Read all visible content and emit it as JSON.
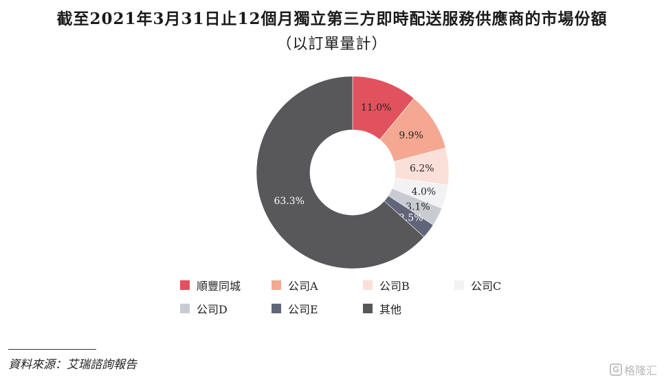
{
  "title_line1": "截至2021年3月31日止12個月獨立第三方即時配送服務供應商的市場份額",
  "title_line2": "（以訂單量計）",
  "source": "資料來源：艾瑞諮詢報告",
  "watermark": {
    "icon_name": "gelonghui-logo-icon",
    "icon_glyph": "G",
    "text": "格隆汇"
  },
  "chart_data": {
    "type": "pie",
    "donut": true,
    "title": "截至2021年3月31日止12個月獨立第三方即時配送服務供應商的市場份額",
    "subtitle": "（以訂單量計）",
    "legend_position": "bottom",
    "slices": [
      {
        "name": "順豐同城",
        "value": 11.0,
        "label": "11.0%",
        "color": "#e2515e"
      },
      {
        "name": "公司A",
        "value": 9.9,
        "label": "9.9%",
        "color": "#f4a892"
      },
      {
        "name": "公司B",
        "value": 6.2,
        "label": "6.2%",
        "color": "#fbe0da"
      },
      {
        "name": "公司C",
        "value": 4.0,
        "label": "4.0%",
        "color": "#f2f2f4"
      },
      {
        "name": "公司D",
        "value": 3.1,
        "label": "3.1%",
        "color": "#c9cbd3"
      },
      {
        "name": "公司E",
        "value": 2.5,
        "label": "2.5%",
        "color": "#616579"
      },
      {
        "name": "其他",
        "value": 63.3,
        "label": "63.3%",
        "color": "#58585b"
      }
    ]
  }
}
